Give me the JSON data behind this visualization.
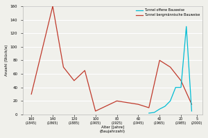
{
  "ylabel": "Anzahl (Stück/a)",
  "xlabel": "Alter [Jahre]\n(Baujahrzahl)",
  "x_labels": [
    "160\n(1845)",
    "140\n(1865)",
    "120\n(1885)",
    "100\n(1905)",
    "80\n(1925)",
    "60\n(1945)",
    "40\n(1965)",
    "20\n(1985)",
    "5\n(2000)"
  ],
  "x_tick_vals": [
    160,
    140,
    120,
    100,
    80,
    60,
    40,
    20,
    5
  ],
  "red_x": [
    160,
    140,
    130,
    120,
    110,
    100,
    80,
    60,
    50,
    40,
    30,
    20,
    10
  ],
  "red_y": [
    30,
    160,
    70,
    50,
    65,
    5,
    20,
    15,
    10,
    80,
    70,
    50,
    15
  ],
  "cyan_x": [
    50,
    45,
    40,
    35,
    30,
    25,
    20,
    15,
    10
  ],
  "cyan_y": [
    2,
    3,
    8,
    12,
    20,
    40,
    40,
    130,
    5
  ],
  "legend_cyan": "Tunnel offene Bauweise",
  "legend_red": "Tunnel bergmännische Bauweise",
  "ylim": [
    0,
    160
  ],
  "yticks": [
    0,
    20,
    40,
    60,
    80,
    100,
    120,
    140,
    160
  ],
  "red_color": "#c0392b",
  "cyan_color": "#00bcd4",
  "bg_color": "#f0f0eb",
  "grid_color": "#ffffff"
}
